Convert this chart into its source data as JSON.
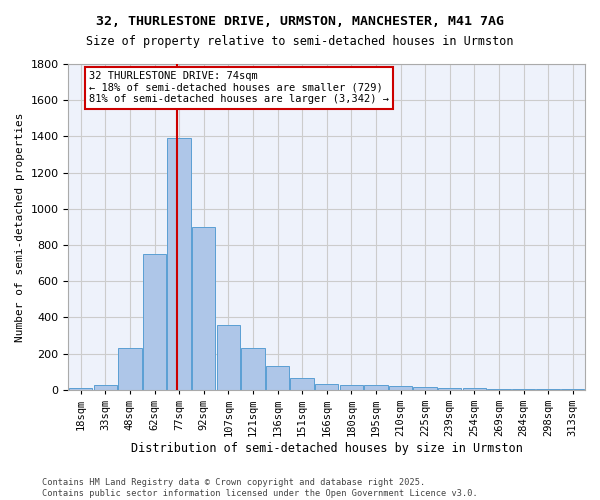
{
  "title1": "32, THURLESTONE DRIVE, URMSTON, MANCHESTER, M41 7AG",
  "title2": "Size of property relative to semi-detached houses in Urmston",
  "xlabel": "Distribution of semi-detached houses by size in Urmston",
  "ylabel": "Number of semi-detached properties",
  "bins": [
    "18sqm",
    "33sqm",
    "48sqm",
    "62sqm",
    "77sqm",
    "92sqm",
    "107sqm",
    "121sqm",
    "136sqm",
    "151sqm",
    "166sqm",
    "180sqm",
    "195sqm",
    "210sqm",
    "225sqm",
    "239sqm",
    "254sqm",
    "269sqm",
    "284sqm",
    "298sqm",
    "313sqm"
  ],
  "values": [
    10,
    25,
    230,
    750,
    1390,
    900,
    360,
    230,
    130,
    65,
    32,
    28,
    28,
    20,
    18,
    10,
    8,
    5,
    5,
    5,
    5
  ],
  "bar_color": "#aec6e8",
  "bar_edge_color": "#5a9fd4",
  "grid_color": "#cccccc",
  "bg_color": "#eef2fb",
  "annotation_text": "32 THURLESTONE DRIVE: 74sqm\n← 18% of semi-detached houses are smaller (729)\n81% of semi-detached houses are larger (3,342) →",
  "annotation_box_color": "#ffffff",
  "annotation_box_edge": "#cc0000",
  "red_line_color": "#cc0000",
  "red_line_x": 3.93,
  "ylim": [
    0,
    1800
  ],
  "footer": "Contains HM Land Registry data © Crown copyright and database right 2025.\nContains public sector information licensed under the Open Government Licence v3.0."
}
